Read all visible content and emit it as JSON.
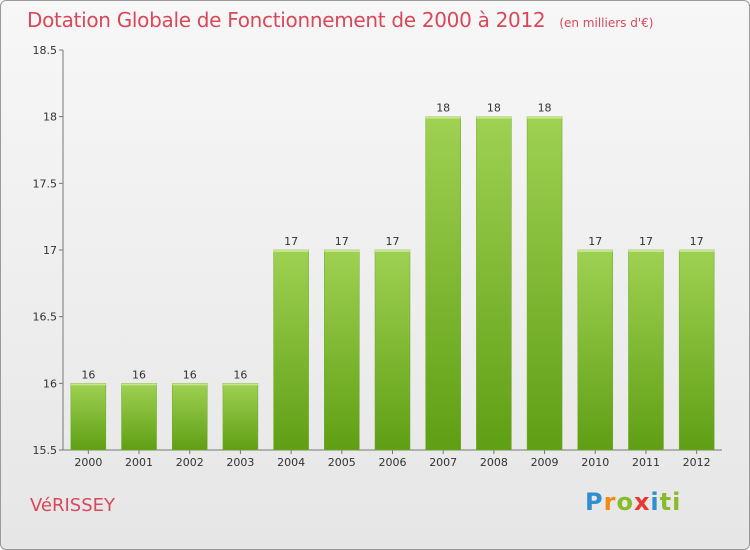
{
  "header": {
    "title": "Dotation Globale de Fonctionnement de 2000 à 2012",
    "unit": "(en milliers d'€)"
  },
  "footer": {
    "commune": "VéRISSEY",
    "brand": "Proxiti",
    "brand_letters": [
      "P",
      "r",
      "o",
      "x",
      "i",
      "ti"
    ]
  },
  "colors": {
    "title": "#d8485a",
    "bar_top": "#9fd152",
    "bar_bottom": "#5f9f14"
  },
  "chart_data": {
    "type": "bar",
    "categories": [
      "2000",
      "2001",
      "2002",
      "2003",
      "2004",
      "2005",
      "2006",
      "2007",
      "2008",
      "2009",
      "2010",
      "2011",
      "2012"
    ],
    "values": [
      16,
      16,
      16,
      16,
      17,
      17,
      17,
      18,
      18,
      18,
      17,
      17,
      17
    ],
    "value_labels": [
      "16",
      "16",
      "16",
      "16",
      "17",
      "17",
      "17",
      "18",
      "18",
      "18",
      "17",
      "17",
      "17"
    ],
    "ylim": [
      15.5,
      18.5
    ],
    "yticks": [
      15.5,
      16,
      16.5,
      17,
      17.5,
      18,
      18.5
    ],
    "ytick_labels": [
      "15.5",
      "16",
      "16.5",
      "17",
      "17.5",
      "18",
      "18.5"
    ],
    "grid": false,
    "legend": "none"
  }
}
